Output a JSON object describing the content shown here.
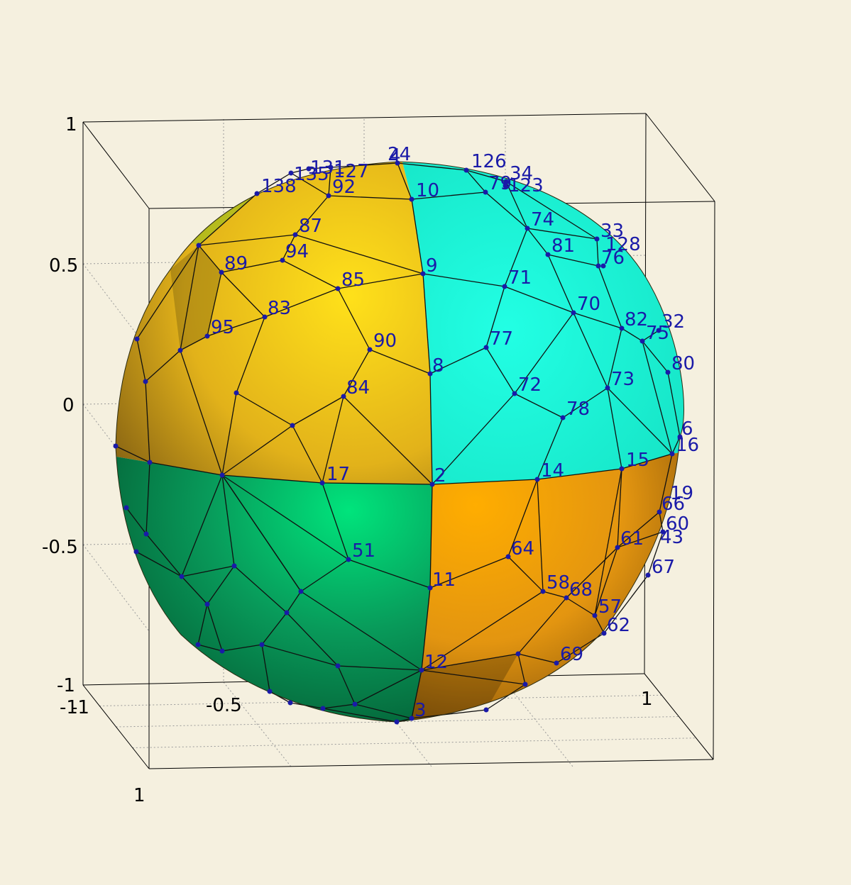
{
  "colors": {
    "background": "#f5f0df",
    "box": "#000000",
    "grid": "#9a9a9a",
    "edge": "#101010",
    "vertex": "#1a1aa8",
    "label": "#1a1aa8",
    "patch_gold": "#f2c41c",
    "patch_cyan": "#19f0d0",
    "patch_green": "#0aa866",
    "patch_orange": "#f0a010"
  },
  "axis_ticks": {
    "left": [
      "1",
      "0.5",
      "0",
      "-0.5",
      "-1"
    ],
    "front": [
      "-1",
      "-0.5",
      "1"
    ],
    "corner": [
      "-1",
      "1"
    ]
  },
  "vertex_labels": [
    "2",
    "3",
    "4",
    "6",
    "8",
    "9",
    "10",
    "11",
    "12",
    "14",
    "15",
    "16",
    "17",
    "19",
    "24",
    "32",
    "33",
    "34",
    "43",
    "51",
    "57",
    "58",
    "60",
    "61",
    "62",
    "64",
    "66",
    "67",
    "68",
    "69",
    "70",
    "71",
    "72",
    "73",
    "74",
    "75",
    "76",
    "77",
    "78",
    "79",
    "80",
    "81",
    "82",
    "83",
    "84",
    "85",
    "87",
    "89",
    "90",
    "92",
    "94",
    "95",
    "123",
    "126",
    "127",
    "128",
    "131",
    "135",
    "138"
  ]
}
